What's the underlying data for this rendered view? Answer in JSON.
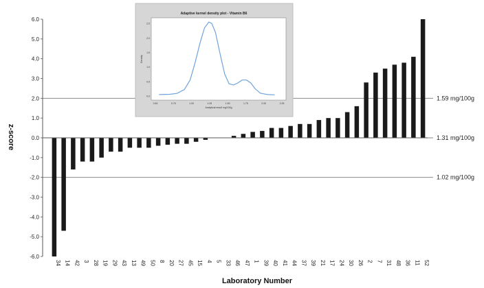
{
  "chart_data": {
    "type": "bar",
    "xlabel": "Laboratory Number",
    "ylabel": "z-score",
    "ylim": [
      -6.0,
      6.0
    ],
    "yticks": [
      "6.0",
      "5.0",
      "4.0",
      "3.0",
      "2.0",
      "1.0",
      "0.0",
      "-1.0",
      "-2.0",
      "-3.0",
      "-4.0",
      "-5.0",
      "-6.0"
    ],
    "categories": [
      "34",
      "14",
      "42",
      "3",
      "28",
      "19",
      "29",
      "43",
      "13",
      "49",
      "50",
      "8",
      "20",
      "27",
      "45",
      "15",
      "4",
      "5",
      "33",
      "46",
      "47",
      "1",
      "39",
      "40",
      "41",
      "44",
      "37",
      "39",
      "21",
      "17",
      "24",
      "30",
      "26",
      "2",
      "7",
      "31",
      "48",
      "36",
      "11",
      "52"
    ],
    "values": [
      -6.0,
      -4.7,
      -1.6,
      -1.2,
      -1.2,
      -1.0,
      -0.7,
      -0.7,
      -0.5,
      -0.5,
      -0.5,
      -0.4,
      -0.35,
      -0.3,
      -0.3,
      -0.2,
      -0.1,
      0.0,
      0.0,
      0.1,
      0.2,
      0.3,
      0.35,
      0.5,
      0.5,
      0.6,
      0.7,
      0.7,
      0.9,
      1.0,
      1.0,
      1.3,
      1.6,
      2.8,
      3.3,
      3.5,
      3.7,
      3.8,
      4.1,
      6.0
    ],
    "reference_lines": [
      {
        "y": 2.0,
        "label": "1.59 mg/100g"
      },
      {
        "y": 0.0,
        "label": "1.31 mg/100g"
      },
      {
        "y": -2.0,
        "label": "1.02 mg/100g"
      }
    ],
    "inset": {
      "type": "line",
      "title": "Adaptive kernel density plot - Vitamin B6",
      "xlabel": "Analytical result mg/100g",
      "ylabel": "Density",
      "xticks": [
        "0.50",
        "0.75",
        "1.00",
        "1.25",
        "1.50",
        "1.75",
        "2.00",
        "2.25"
      ],
      "yticks": [
        "0.0",
        "0.5",
        "1.0",
        "1.5",
        "2.0",
        "2.5"
      ],
      "xlim": [
        0.5,
        2.25
      ],
      "ylim": [
        0,
        2.6
      ],
      "x": [
        0.55,
        0.7,
        0.8,
        0.9,
        0.98,
        1.05,
        1.12,
        1.18,
        1.24,
        1.28,
        1.33,
        1.4,
        1.46,
        1.52,
        1.58,
        1.64,
        1.7,
        1.76,
        1.82,
        1.88,
        1.95,
        2.05,
        2.15
      ],
      "y": [
        0.05,
        0.06,
        0.09,
        0.22,
        0.55,
        1.15,
        1.85,
        2.35,
        2.55,
        2.5,
        2.2,
        1.4,
        0.75,
        0.42,
        0.38,
        0.45,
        0.55,
        0.55,
        0.45,
        0.25,
        0.1,
        0.05,
        0.04
      ]
    }
  }
}
